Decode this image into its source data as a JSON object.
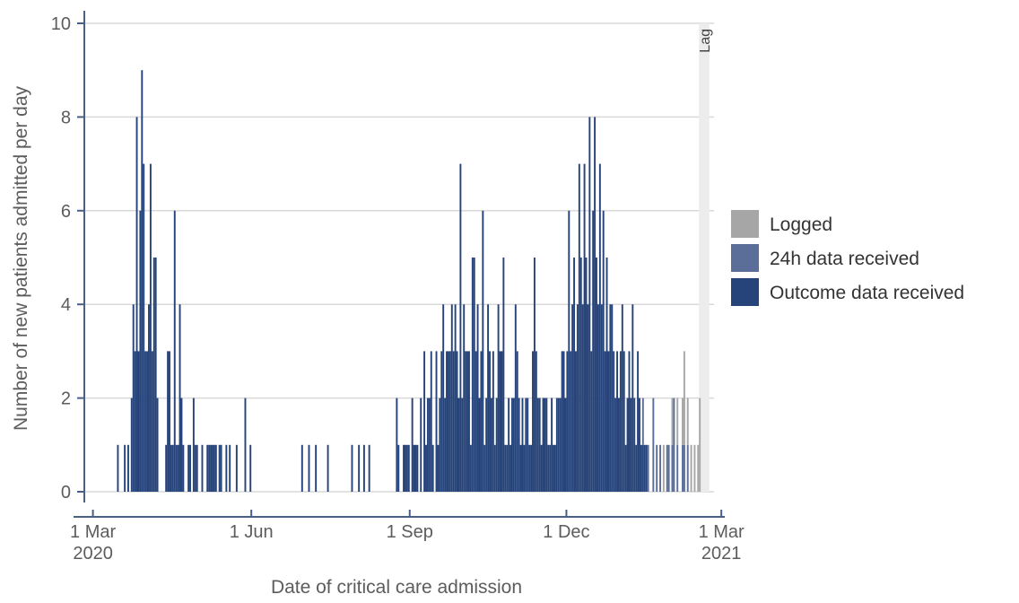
{
  "chart_data": {
    "type": "bar",
    "stacked": true,
    "title": "",
    "xlabel": "Date of critical care admission",
    "ylabel": "Number of new patients admitted per day",
    "ylim": [
      0,
      10
    ],
    "yticks": [
      "0",
      "2",
      "4",
      "6",
      "8",
      "10"
    ],
    "xlim": [
      "2020-02-25",
      "2021-03-03"
    ],
    "xticks": [
      {
        "date": "2020-03-01",
        "line1": "1 Mar",
        "line2": "2020"
      },
      {
        "date": "2020-06-01",
        "line1": "1 Jun",
        "line2": ""
      },
      {
        "date": "2020-09-01",
        "line1": "1 Sep",
        "line2": ""
      },
      {
        "date": "2020-12-01",
        "line1": "1 Dec",
        "line2": ""
      },
      {
        "date": "2021-03-01",
        "line1": "1 Mar",
        "line2": "2021"
      }
    ],
    "grid": true,
    "legend_position": "right",
    "legend": [
      {
        "name": "Logged",
        "color": "#a6a6a6"
      },
      {
        "name": "24h data received",
        "color": "#5b6e99"
      },
      {
        "name": "Outcome data received",
        "color": "#26437a"
      }
    ],
    "lag_band": {
      "label": "Lag",
      "start": "2021-02-16",
      "end": "2021-02-22",
      "color": "#ececec"
    },
    "outcome_series": {
      "name": "Outcome data received",
      "start_date": "2020-03-15",
      "values": [
        1,
        0,
        0,
        0,
        1,
        0,
        1,
        0,
        2,
        4,
        3,
        8,
        3,
        6,
        9,
        7,
        3,
        3,
        4,
        7,
        3,
        5,
        5,
        2,
        0,
        0,
        0,
        0,
        1,
        3,
        3,
        1,
        1,
        6,
        1,
        1,
        4,
        2,
        1,
        0,
        0,
        1,
        1,
        0,
        2,
        1,
        1,
        0,
        0,
        1,
        0,
        0,
        1,
        1,
        1,
        1,
        1,
        1,
        0,
        1,
        1,
        0,
        0,
        1,
        0,
        1,
        0,
        0,
        0,
        1,
        0,
        0,
        0,
        0,
        2,
        0,
        0,
        1,
        0,
        0,
        0,
        0,
        0,
        0,
        0,
        0,
        0,
        0,
        0,
        0,
        0,
        0,
        0,
        0,
        0,
        0,
        0,
        0,
        0,
        0,
        0,
        0,
        0,
        0,
        0,
        0,
        0,
        1,
        0,
        0,
        0,
        1,
        0,
        0,
        0,
        1,
        0,
        0,
        0,
        0,
        0,
        0,
        1,
        0,
        0,
        0,
        0,
        0,
        0,
        0,
        0,
        0,
        0,
        0,
        0,
        0,
        1,
        0,
        0,
        0,
        1,
        0,
        0,
        1,
        0,
        0,
        1,
        0,
        0,
        0,
        0,
        0,
        0,
        0,
        0,
        0,
        0,
        0,
        0,
        0,
        0,
        0,
        2,
        1,
        0,
        0,
        1,
        1,
        1,
        1,
        0,
        2,
        1,
        1,
        1,
        0,
        2,
        0,
        3,
        1,
        2,
        2,
        3,
        1,
        0,
        3,
        1,
        2,
        3,
        4,
        2,
        3,
        3,
        3,
        4,
        3,
        4,
        3,
        2,
        7,
        2,
        4,
        3,
        3,
        3,
        1,
        5,
        5,
        3,
        4,
        2,
        3,
        6,
        1,
        2,
        4,
        3,
        2,
        3,
        1,
        2,
        4,
        3,
        3,
        5,
        1,
        1,
        2,
        1,
        2,
        2,
        4,
        3,
        2,
        1,
        2,
        1,
        2,
        2,
        1,
        1,
        3,
        5,
        3,
        2,
        2,
        1,
        2,
        2,
        2,
        1,
        1,
        2,
        1,
        1,
        2,
        2,
        2,
        3,
        3,
        2,
        3,
        6,
        3,
        4,
        5,
        3,
        4,
        7,
        5,
        4,
        7,
        5,
        4,
        8,
        3,
        6,
        8,
        5,
        4,
        7,
        4,
        6,
        3,
        5,
        3,
        4,
        4,
        3,
        2,
        3,
        2,
        3,
        4,
        3,
        1,
        2,
        3,
        2,
        4,
        2,
        1,
        3,
        2,
        1,
        1,
        1,
        1
      ]
    },
    "h24_series": {
      "name": "24h data received",
      "start_date": "2021-01-07",
      "values": [
        0,
        0,
        0,
        0,
        0,
        0,
        0,
        1,
        0,
        0,
        1,
        0,
        0,
        2,
        0,
        1,
        0,
        1,
        0,
        0,
        0,
        1,
        1,
        0,
        1,
        2,
        0,
        1,
        0,
        0,
        1,
        1,
        0,
        1,
        0
      ]
    },
    "logged_series": {
      "name": "Logged",
      "start_date": "2021-01-21",
      "values": [
        0,
        0,
        0,
        0,
        0,
        1,
        0,
        0,
        0,
        0,
        1,
        0,
        0,
        1,
        0,
        0,
        1,
        2,
        0,
        1,
        0,
        1,
        0,
        1,
        0,
        1,
        2
      ]
    }
  }
}
